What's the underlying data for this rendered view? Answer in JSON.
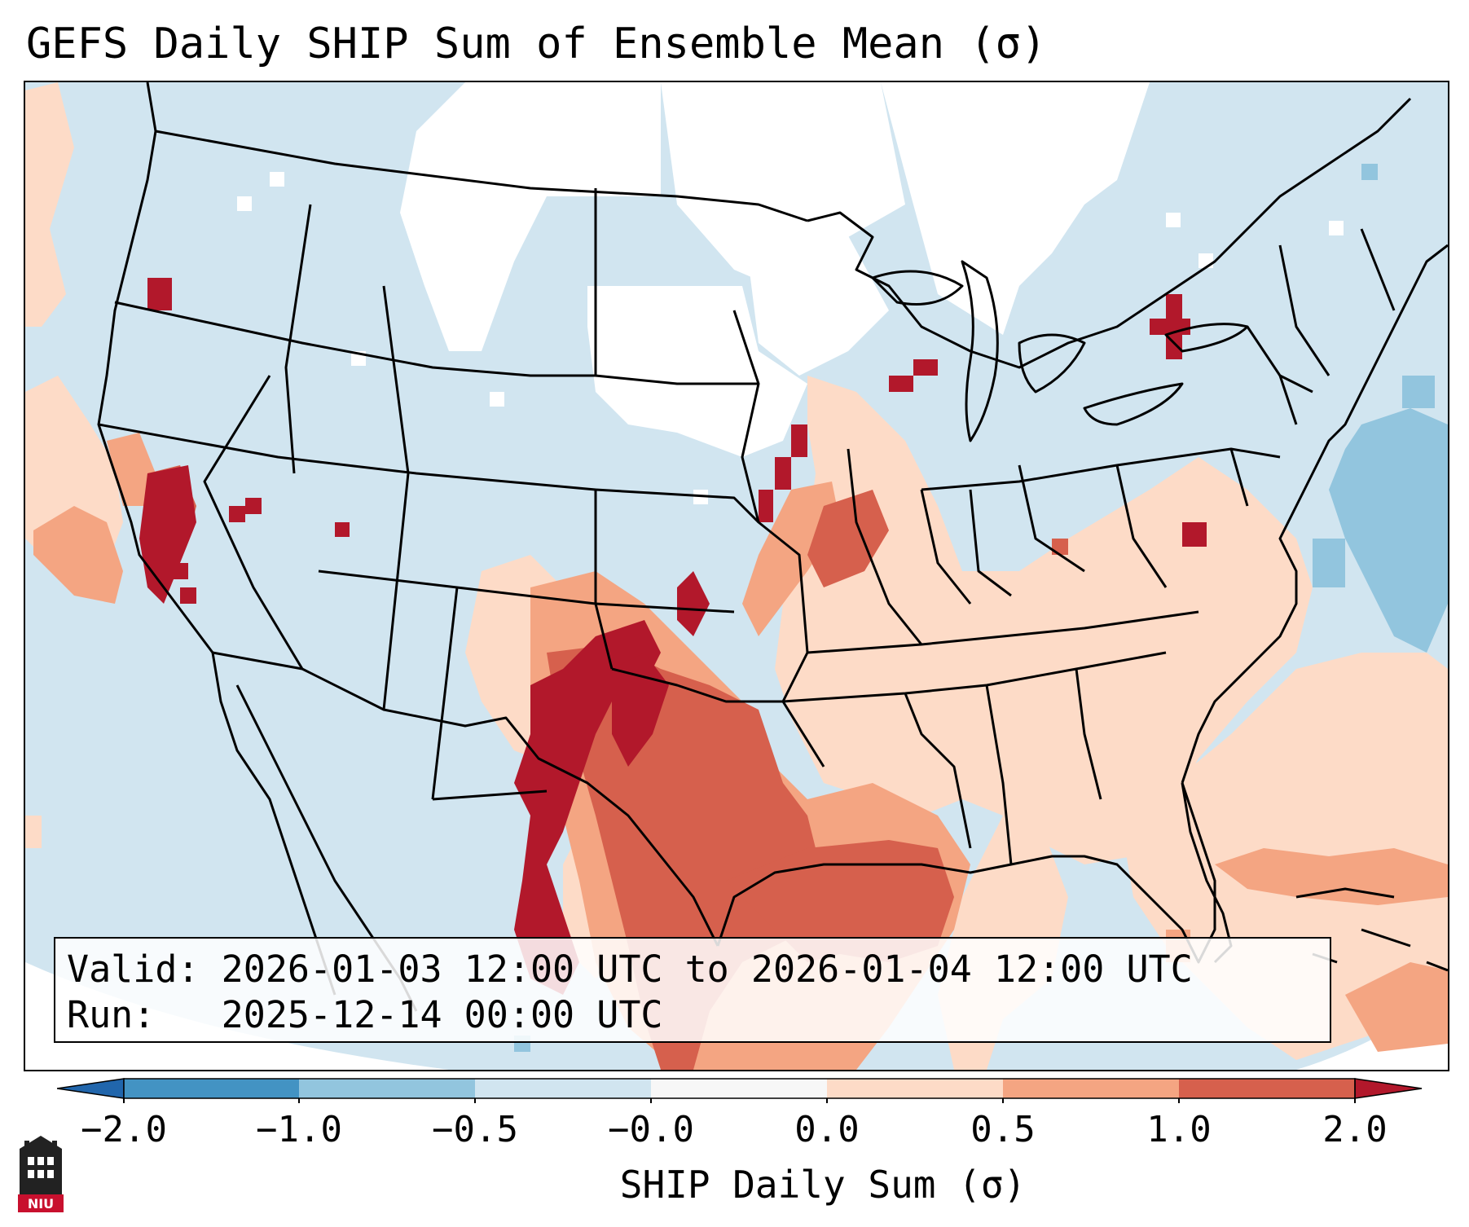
{
  "title": "GEFS Daily SHIP Sum of Ensemble Mean (σ)",
  "info": {
    "valid_label": "Valid:",
    "valid_text": "2026-01-03 12:00 UTC to 2026-01-04 12:00 UTC",
    "run_label": "Run:",
    "run_text": "2025-12-14 00:00 UTC"
  },
  "colorbar": {
    "label": "SHIP Daily Sum (σ)",
    "ticks": [
      "−2.0",
      "−1.0",
      "−0.5",
      "−0.0",
      "0.0",
      "0.5",
      "1.0",
      "2.0"
    ],
    "colors": {
      "below_-2": "#2166ac",
      "-2_to_-1": "#4393c3",
      "-1_to_-0.5": "#92c5de",
      "-0.5_to_0": "#d1e5f0",
      "0_band": "#f7f7f7",
      "0_to_0.5": "#fddbc7",
      "0.5_to_1": "#f4a582",
      "1_to_2": "#d6604d",
      "above_2": "#b2182b"
    }
  },
  "logo": {
    "text": "NIU",
    "icon": "niu-building-logo-icon"
  }
}
